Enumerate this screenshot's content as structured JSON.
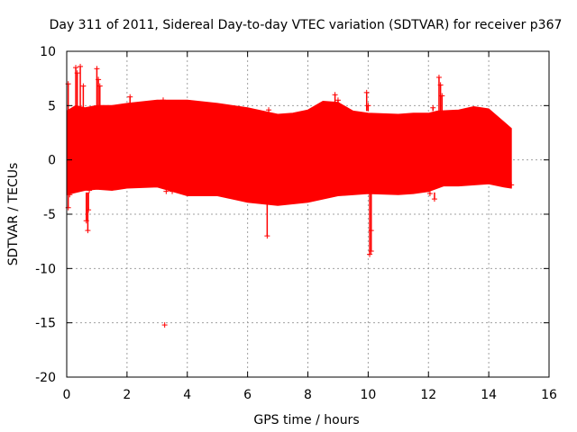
{
  "chart_data": {
    "type": "scatter",
    "title": "Day 311 of 2011, Sidereal Day-to-day VTEC variation (SDTVAR) for receiver p367",
    "xlabel": "GPS time / hours",
    "ylabel": "SDTVAR / TECUs",
    "xlim": [
      0,
      16
    ],
    "ylim": [
      -20,
      10
    ],
    "xticks": [
      0,
      2,
      4,
      6,
      8,
      10,
      12,
      14,
      16
    ],
    "yticks": [
      -20,
      -15,
      -10,
      -5,
      0,
      5,
      10
    ],
    "grid": true,
    "series_color": "#ff0000",
    "band_upper": [
      [
        0.0,
        4.5
      ],
      [
        0.3,
        5.0
      ],
      [
        0.6,
        4.8
      ],
      [
        1.0,
        5.0
      ],
      [
        1.5,
        5.0
      ],
      [
        2.0,
        5.2
      ],
      [
        3.0,
        5.5
      ],
      [
        4.0,
        5.5
      ],
      [
        5.0,
        5.2
      ],
      [
        6.0,
        4.8
      ],
      [
        7.0,
        4.2
      ],
      [
        7.5,
        4.3
      ],
      [
        8.0,
        4.6
      ],
      [
        8.5,
        5.4
      ],
      [
        9.0,
        5.3
      ],
      [
        9.5,
        4.5
      ],
      [
        10.0,
        4.3
      ],
      [
        11.0,
        4.2
      ],
      [
        11.5,
        4.3
      ],
      [
        12.0,
        4.3
      ],
      [
        12.3,
        4.5
      ],
      [
        13.0,
        4.6
      ],
      [
        13.5,
        4.9
      ],
      [
        14.0,
        4.7
      ],
      [
        14.5,
        3.5
      ],
      [
        14.75,
        2.9
      ]
    ],
    "band_lower": [
      [
        0.0,
        -3.2
      ],
      [
        0.3,
        -3.0
      ],
      [
        0.6,
        -2.8
      ],
      [
        1.0,
        -2.7
      ],
      [
        1.5,
        -2.8
      ],
      [
        2.0,
        -2.6
      ],
      [
        3.0,
        -2.5
      ],
      [
        4.0,
        -3.3
      ],
      [
        5.0,
        -3.3
      ],
      [
        6.0,
        -3.9
      ],
      [
        7.0,
        -4.2
      ],
      [
        8.0,
        -3.9
      ],
      [
        8.5,
        -3.6
      ],
      [
        9.0,
        -3.3
      ],
      [
        10.0,
        -3.1
      ],
      [
        11.0,
        -3.2
      ],
      [
        11.5,
        -3.1
      ],
      [
        12.0,
        -2.9
      ],
      [
        12.5,
        -2.4
      ],
      [
        13.0,
        -2.4
      ],
      [
        14.0,
        -2.2
      ],
      [
        14.5,
        -2.5
      ],
      [
        14.75,
        -2.6
      ]
    ],
    "points": [
      {
        "x": 0.05,
        "y": -4.4
      },
      {
        "x": 0.05,
        "y": 7.0
      },
      {
        "x": 0.1,
        "y": -3.2
      },
      {
        "x": 0.3,
        "y": 8.5
      },
      {
        "x": 0.35,
        "y": 8.0
      },
      {
        "x": 0.45,
        "y": 8.6
      },
      {
        "x": 0.55,
        "y": 6.8
      },
      {
        "x": 0.65,
        "y": -5.6
      },
      {
        "x": 0.7,
        "y": -6.5
      },
      {
        "x": 0.72,
        "y": -4.6
      },
      {
        "x": 0.75,
        "y": -2.8
      },
      {
        "x": 1.0,
        "y": 8.4
      },
      {
        "x": 1.05,
        "y": 7.4
      },
      {
        "x": 1.1,
        "y": 6.8
      },
      {
        "x": 2.1,
        "y": 5.8
      },
      {
        "x": 3.2,
        "y": 5.5
      },
      {
        "x": 3.25,
        "y": -15.2
      },
      {
        "x": 3.3,
        "y": -2.9
      },
      {
        "x": 3.5,
        "y": -2.9
      },
      {
        "x": 6.65,
        "y": -7.0
      },
      {
        "x": 6.7,
        "y": 4.6
      },
      {
        "x": 8.9,
        "y": 6.0
      },
      {
        "x": 9.0,
        "y": 5.5
      },
      {
        "x": 9.95,
        "y": 6.2
      },
      {
        "x": 10.0,
        "y": 5.0
      },
      {
        "x": 10.05,
        "y": -8.7
      },
      {
        "x": 10.1,
        "y": -6.5
      },
      {
        "x": 10.1,
        "y": -8.4
      },
      {
        "x": 12.05,
        "y": -3.1
      },
      {
        "x": 12.15,
        "y": 4.8
      },
      {
        "x": 12.2,
        "y": -3.6
      },
      {
        "x": 12.35,
        "y": 7.6
      },
      {
        "x": 12.4,
        "y": 6.9
      },
      {
        "x": 12.45,
        "y": 5.9
      },
      {
        "x": 12.5,
        "y": -2.1
      },
      {
        "x": 14.75,
        "y": -2.3
      }
    ]
  }
}
